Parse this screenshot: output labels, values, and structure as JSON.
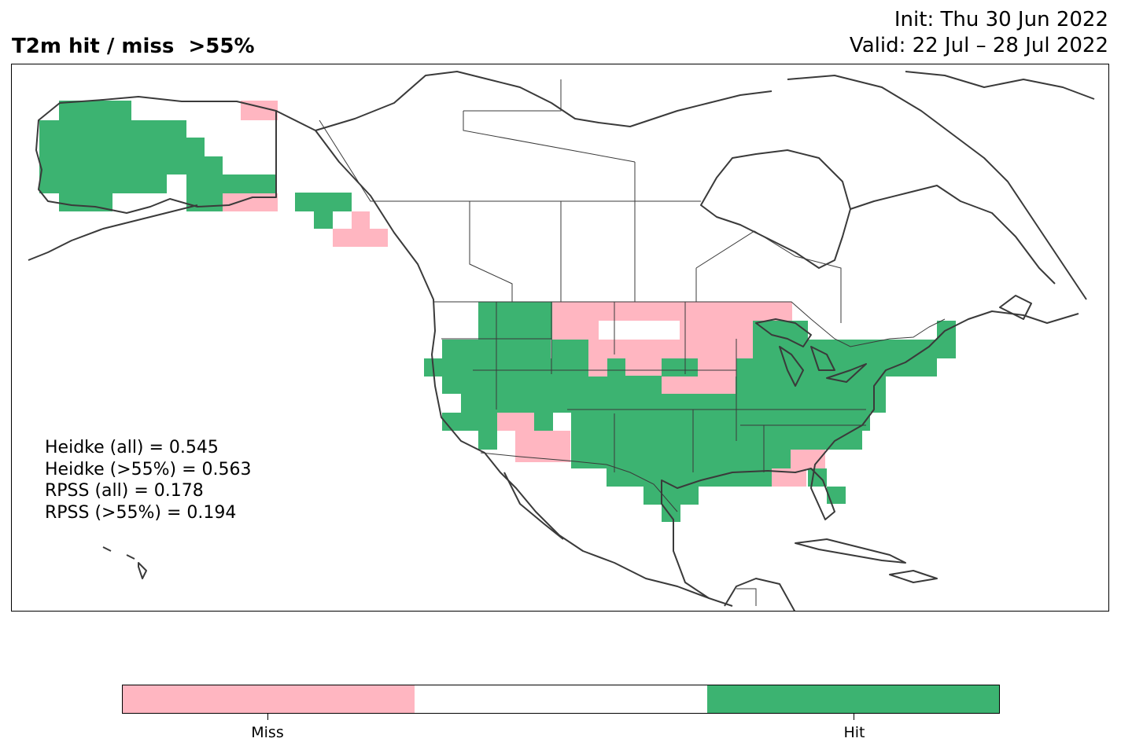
{
  "header": {
    "title": "T2m hit / miss  >55%",
    "init": "Init: Thu 30 Jun 2022",
    "valid": "Valid: 22 Jul – 28 Jul 2022"
  },
  "stats": [
    "Heidke (all) = 0.545",
    "Heidke (>55%) = 0.563",
    "RPSS (all) = 0.178",
    "RPSS (>55%) = 0.194"
  ],
  "colors": {
    "miss": "#FFB6C1",
    "neutral": "#FFFFFF",
    "hit": "#3CB371",
    "coast": "#3a3a3a"
  },
  "colorbar": {
    "ticks": [
      "Miss",
      "Hit"
    ]
  },
  "map": {
    "projection": "Lambert-like North America",
    "region": "North America"
  }
}
